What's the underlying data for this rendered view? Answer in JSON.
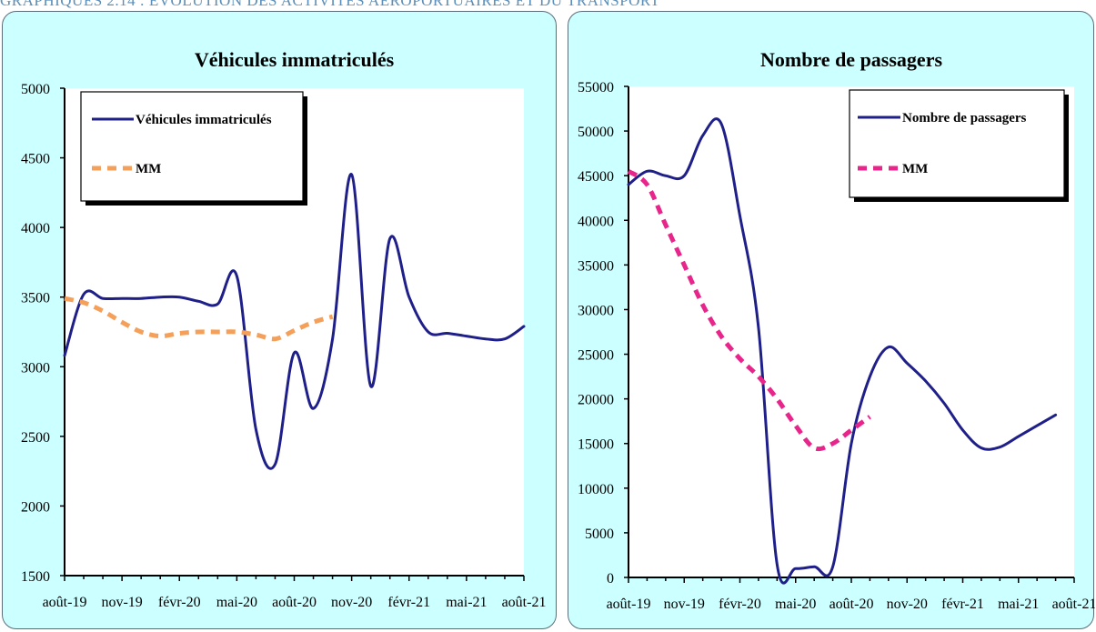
{
  "page_title": "GRAPHIQUES 2.14 : ÉVOLUTION DES ACTIVITÉS AÉROPORTUAIRES ET DU TRANSPORT",
  "colors": {
    "series": "#1f1f8a",
    "mm_left": "#f4a05a",
    "mm_right": "#e8258a",
    "panel_bg": "#ccffff",
    "plot_bg": "#ffffff"
  },
  "chart_data": [
    {
      "type": "line",
      "title": "Véhicules immatriculés",
      "xlabel": "",
      "ylabel": "",
      "ylim": [
        1500,
        5000
      ],
      "yticks": [
        1500,
        2000,
        2500,
        3000,
        3500,
        4000,
        4500,
        5000
      ],
      "xticks": [
        "août-19",
        "nov-19",
        "févr-20",
        "mai-20",
        "août-20",
        "nov-20",
        "févr-21",
        "mai-21",
        "août-21"
      ],
      "legend": "top-left",
      "series": [
        {
          "name": "Véhicules immatriculés",
          "style": "solid",
          "values": [
            3080,
            3520,
            3490,
            3490,
            3490,
            3500,
            3500,
            3470,
            3450,
            3650,
            2550,
            2300,
            3100,
            2700,
            3200,
            4380,
            2860,
            3920,
            3500,
            3250,
            3240,
            3220,
            3200,
            3200,
            3290
          ]
        },
        {
          "name": "MM",
          "style": "dashed",
          "values": [
            3490,
            3460,
            3400,
            3320,
            3250,
            3220,
            3240,
            3250,
            3250,
            3250,
            3230,
            3200,
            3260,
            3320,
            3360
          ]
        }
      ]
    },
    {
      "type": "line",
      "title": "Nombre de passagers",
      "xlabel": "",
      "ylabel": "",
      "ylim": [
        0,
        55000
      ],
      "yticks": [
        0,
        5000,
        10000,
        15000,
        20000,
        25000,
        30000,
        35000,
        40000,
        45000,
        50000,
        55000
      ],
      "xticks": [
        "août-19",
        "nov-19",
        "févr-20",
        "mai-20",
        "août-20",
        "nov-20",
        "févr-21",
        "mai-21",
        "août-21"
      ],
      "legend": "top-right",
      "series": [
        {
          "name": "Nombre de passagers",
          "style": "solid",
          "values": [
            44000,
            45500,
            45000,
            45000,
            49500,
            50800,
            40500,
            28000,
            1500,
            1000,
            1200,
            1200,
            15000,
            22500,
            25800,
            24000,
            22000,
            19500,
            16500,
            14500,
            14600,
            15800,
            17000,
            18200
          ]
        },
        {
          "name": "MM",
          "style": "dashed",
          "values": [
            45500,
            44000,
            39500,
            35000,
            30500,
            27000,
            24500,
            22500,
            20000,
            17000,
            14500,
            15000,
            16500,
            18000
          ]
        }
      ]
    }
  ]
}
